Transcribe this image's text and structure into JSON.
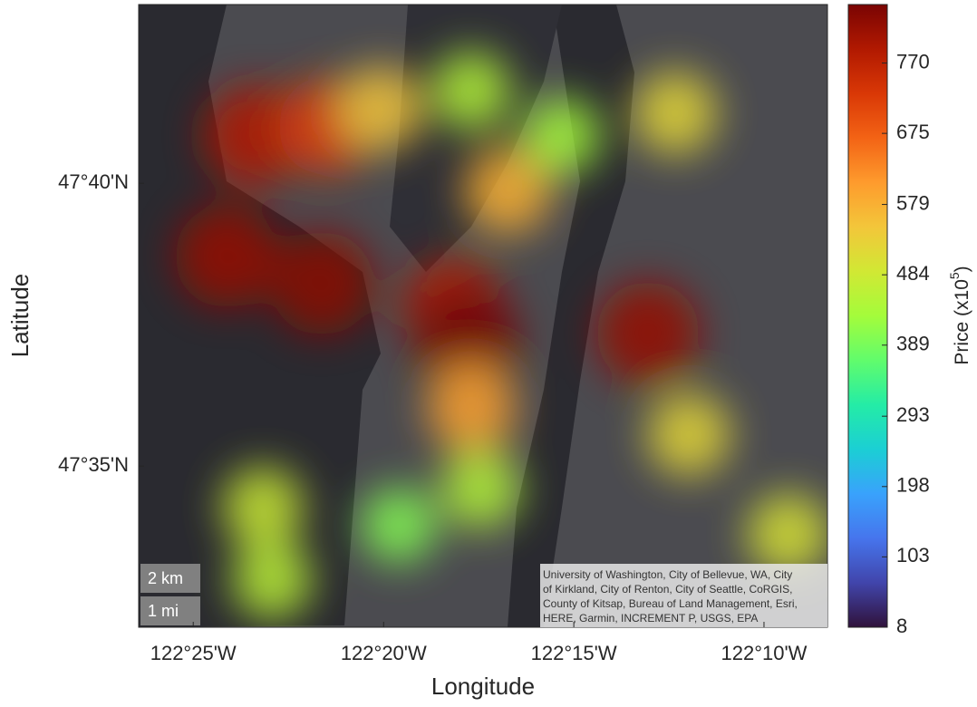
{
  "chart_data": {
    "type": "map",
    "x_label": "Longitude",
    "y_label": "Latitude",
    "xlim": [
      -122.4406,
      -122.1389
    ],
    "ylim": [
      47.5358,
      47.7194
    ],
    "xticks": [
      {
        "value": -122.4167,
        "label": "122°25'W"
      },
      {
        "value": -122.3333,
        "label": "122°20'W"
      },
      {
        "value": -122.25,
        "label": "122°15'W"
      },
      {
        "value": -122.1667,
        "label": "122°10'W"
      }
    ],
    "yticks": [
      {
        "value": 47.5833,
        "label": "47°35'N"
      },
      {
        "value": 47.6667,
        "label": "47°40'N"
      }
    ],
    "colorbar": {
      "label": "Price (x10",
      "label_sup": "5",
      "label_end": ")",
      "colormap": "turbo",
      "lim": [
        8,
        849
      ],
      "ticks": [
        8,
        103,
        198,
        293,
        389,
        484,
        579,
        675,
        770
      ]
    },
    "points": [
      {
        "lon": -122.3902,
        "lat": 47.6807,
        "value": 790
      },
      {
        "lon": -122.3584,
        "lat": 47.6834,
        "value": 720
      },
      {
        "lon": -122.4021,
        "lat": 47.6452,
        "value": 820
      },
      {
        "lon": -122.3604,
        "lat": 47.6372,
        "value": 830
      },
      {
        "lon": -122.3028,
        "lat": 47.63,
        "value": 780
      },
      {
        "lon": -122.2969,
        "lat": 47.6206,
        "value": 849
      },
      {
        "lon": -122.2949,
        "lat": 47.6006,
        "value": 600
      },
      {
        "lon": -122.2909,
        "lat": 47.5766,
        "value": 450
      },
      {
        "lon": -122.2175,
        "lat": 47.6225,
        "value": 820
      },
      {
        "lon": -122.2056,
        "lat": 47.6874,
        "value": 520
      },
      {
        "lon": -122.3346,
        "lat": 47.6887,
        "value": 550
      },
      {
        "lon": -122.279,
        "lat": 47.6647,
        "value": 580
      },
      {
        "lon": -122.3862,
        "lat": 47.5712,
        "value": 480
      },
      {
        "lon": -122.3822,
        "lat": 47.5498,
        "value": 460
      },
      {
        "lon": -122.156,
        "lat": 47.5632,
        "value": 500
      },
      {
        "lon": -122.1996,
        "lat": 47.5926,
        "value": 520
      },
      {
        "lon": -122.2949,
        "lat": 47.694,
        "value": 450
      },
      {
        "lon": -122.2552,
        "lat": 47.6807,
        "value": 430
      },
      {
        "lon": -122.3267,
        "lat": 47.5659,
        "value": 400
      }
    ],
    "scale_bar": [
      "2 km",
      "1 mi"
    ],
    "attribution": [
      "University of Washington, City of Bellevue, WA, City",
      "of Kirkland, City of Renton, City of Seattle, CoRGIS,",
      "County of Kitsap, Bureau of Land Management, Esri,",
      "HERE, Garmin, INCREMENT P, USGS, EPA"
    ]
  }
}
